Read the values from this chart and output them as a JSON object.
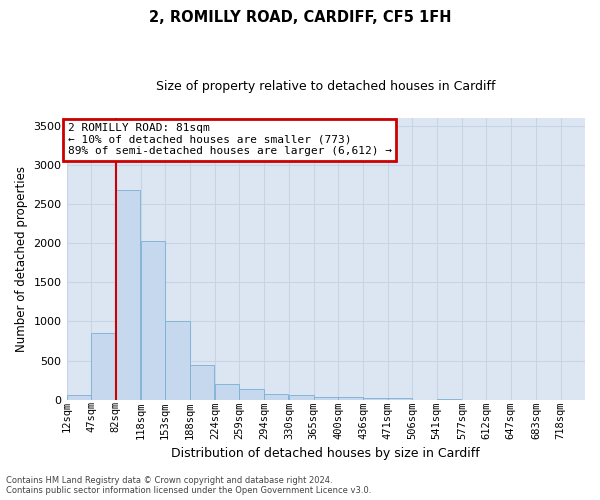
{
  "title_line1": "2, ROMILLY ROAD, CARDIFF, CF5 1FH",
  "title_line2": "Size of property relative to detached houses in Cardiff",
  "xlabel": "Distribution of detached houses by size in Cardiff",
  "ylabel": "Number of detached properties",
  "categories": [
    "12sqm",
    "47sqm",
    "82sqm",
    "118sqm",
    "153sqm",
    "188sqm",
    "224sqm",
    "259sqm",
    "294sqm",
    "330sqm",
    "365sqm",
    "400sqm",
    "436sqm",
    "471sqm",
    "506sqm",
    "541sqm",
    "577sqm",
    "612sqm",
    "647sqm",
    "683sqm",
    "718sqm"
  ],
  "bin_starts": [
    12,
    47,
    82,
    118,
    153,
    188,
    224,
    259,
    294,
    330,
    365,
    400,
    436,
    471,
    506,
    541,
    577,
    612,
    647,
    683,
    718
  ],
  "bin_width": 35,
  "values": [
    65,
    850,
    2680,
    2030,
    1000,
    450,
    200,
    140,
    75,
    55,
    40,
    30,
    25,
    20,
    0,
    15,
    0,
    0,
    0,
    0,
    0
  ],
  "bar_color": "#c5d8ee",
  "bar_edge_color": "#7bafd4",
  "grid_color": "#c8d4e4",
  "background_color": "#dce6f2",
  "annotation_line1": "2 ROMILLY ROAD: 81sqm",
  "annotation_line2": "← 10% of detached houses are smaller (773)",
  "annotation_line3": "89% of semi-detached houses are larger (6,612) →",
  "annotation_box_facecolor": "#ffffff",
  "annotation_box_edgecolor": "#cc0000",
  "vline_x": 82,
  "vline_color": "#cc0000",
  "ylim": [
    0,
    3600
  ],
  "yticks": [
    0,
    500,
    1000,
    1500,
    2000,
    2500,
    3000,
    3500
  ],
  "title_fontsize": 10.5,
  "subtitle_fontsize": 9,
  "ylabel_fontsize": 8.5,
  "xlabel_fontsize": 9,
  "tick_fontsize": 7.5,
  "annot_fontsize": 8,
  "footer_line1": "Contains HM Land Registry data © Crown copyright and database right 2024.",
  "footer_line2": "Contains public sector information licensed under the Open Government Licence v3.0."
}
